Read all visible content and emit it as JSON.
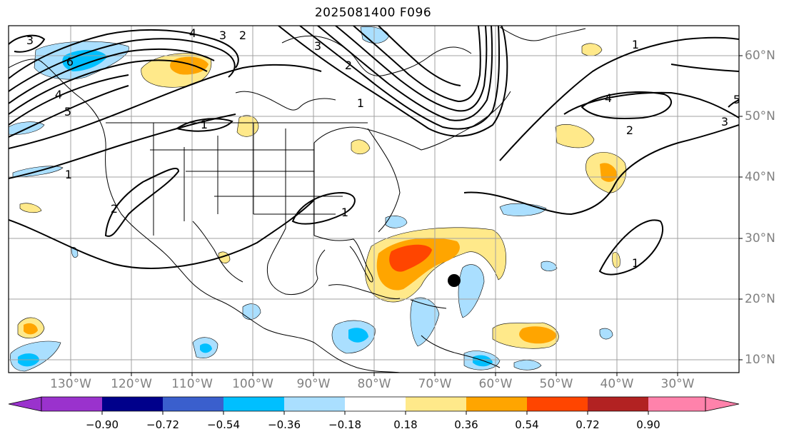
{
  "title": "2025081400 F096",
  "longitude_labels": [
    "130°W",
    "120°W",
    "110°W",
    "100°W",
    "90°W",
    "80°W",
    "70°W",
    "60°W",
    "50°W",
    "40°W",
    "30°W"
  ],
  "latitude_labels": [
    "60°N",
    "50°N",
    "40°N",
    "30°N",
    "20°N",
    "10°N"
  ],
  "colorbar": {
    "ticks": [
      "−0.90",
      "−0.72",
      "−0.54",
      "−0.36",
      "−0.18",
      "0.18",
      "0.36",
      "0.54",
      "0.72",
      "0.90"
    ],
    "colors": [
      "#9a32cd",
      "#00008b",
      "#3a5fcd",
      "#00bfff",
      "#aadfff",
      "#ffffff",
      "#ffe98a",
      "#ffa500",
      "#ff4500",
      "#b22222",
      "#ff82ab"
    ]
  },
  "contour_labels": [
    "3",
    "4",
    "3",
    "2",
    "5",
    "6",
    "4",
    "1",
    "3",
    "2",
    "1",
    "1",
    "2",
    "1",
    "1",
    "4",
    "2",
    "3",
    "5",
    "1",
    "1"
  ],
  "marker": {
    "name": "storm-center",
    "color": "#000000"
  }
}
